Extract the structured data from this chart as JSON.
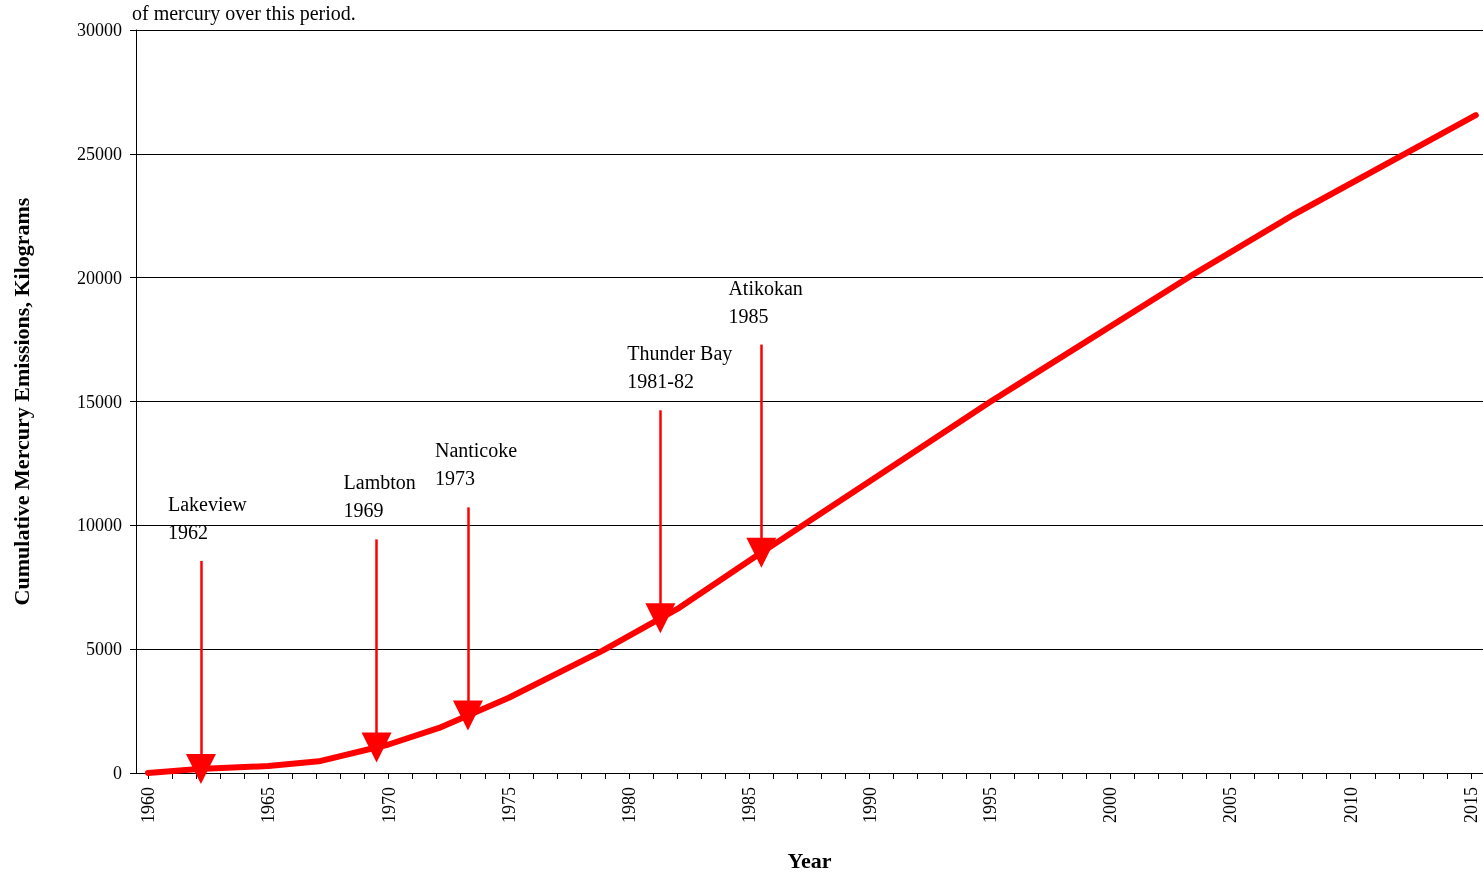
{
  "chart_data": {
    "type": "line",
    "subtitle": "of mercury over this period.",
    "xlabel": "Year",
    "ylabel": "Cumulative Mercury Emissions, Kilograms",
    "series": [
      {
        "color": "#ff0000",
        "x": [
          1960,
          1962.1,
          1965,
          1967.1,
          1970,
          1972.1,
          1975,
          1978.9,
          1982.1,
          1985.3,
          1989.8,
          1995,
          2003.3,
          2007.6,
          2015.2
        ],
        "values": [
          0,
          160,
          280,
          470,
          1150,
          1820,
          3040,
          4940,
          6680,
          8770,
          11650,
          14980,
          20040,
          22530,
          26560
        ]
      }
    ],
    "xlim": [
      1959.5,
      2015.5
    ],
    "ylim": [
      0,
      30000
    ],
    "xticks": [
      1960,
      {
        "value": 1961,
        "label": null
      },
      {
        "value": 1962,
        "label": null
      },
      {
        "value": 1963,
        "label": null
      },
      {
        "value": 1964,
        "label": null
      },
      1965,
      {
        "value": 1966,
        "label": null
      },
      {
        "value": 1967,
        "label": null
      },
      {
        "value": 1968,
        "label": null
      },
      {
        "value": 1969,
        "label": null
      },
      1970,
      {
        "value": 1971,
        "label": null
      },
      {
        "value": 1972,
        "label": null
      },
      {
        "value": 1973,
        "label": null
      },
      {
        "value": 1974,
        "label": null
      },
      1975,
      {
        "value": 1976,
        "label": null
      },
      {
        "value": 1977,
        "label": null
      },
      {
        "value": 1978,
        "label": null
      },
      {
        "value": 1979,
        "label": null
      },
      1980,
      {
        "value": 1981,
        "label": null
      },
      {
        "value": 1982,
        "label": null
      },
      {
        "value": 1983,
        "label": null
      },
      {
        "value": 1984,
        "label": null
      },
      1985,
      {
        "value": 1986,
        "label": null
      },
      {
        "value": 1987,
        "label": null
      },
      {
        "value": 1988,
        "label": null
      },
      {
        "value": 1989,
        "label": null
      },
      1990,
      {
        "value": 1991,
        "label": null
      },
      {
        "value": 1992,
        "label": null
      },
      {
        "value": 1993,
        "label": null
      },
      {
        "value": 1994,
        "label": null
      },
      1995,
      {
        "value": 1996,
        "label": null
      },
      {
        "value": 1997,
        "label": null
      },
      {
        "value": 1998,
        "label": null
      },
      {
        "value": 1999,
        "label": null
      },
      2000,
      {
        "value": 2001,
        "label": null
      },
      {
        "value": 2002,
        "label": null
      },
      {
        "value": 2003,
        "label": null
      },
      {
        "value": 2004,
        "label": null
      },
      2005,
      {
        "value": 2006,
        "label": null
      },
      {
        "value": 2007,
        "label": null
      },
      {
        "value": 2008,
        "label": null
      },
      {
        "value": 2009,
        "label": null
      },
      2010,
      {
        "value": 2011,
        "label": null
      },
      {
        "value": 2012,
        "label": null
      },
      {
        "value": 2013,
        "label": null
      },
      {
        "value": 2014,
        "label": null
      },
      2015
    ],
    "yticks": [
      0,
      5000,
      10000,
      15000,
      20000,
      25000,
      30000
    ],
    "grid": "y",
    "marker": "none",
    "line_style": "solid",
    "annotations": [
      {
        "text": "Lakeview\n1962",
        "x": 1962.2,
        "y": 164
      },
      {
        "text": "Lambton\n1969",
        "x": 1969.5,
        "y": 1033
      },
      {
        "text": "Nanticoke\n1973",
        "x": 1973.3,
        "y": 2325
      },
      {
        "text": "Thunder Bay\n1981-82",
        "x": 1981.3,
        "y": 6245
      },
      {
        "text": "Atikokan\n1985",
        "x": 1985.5,
        "y": 8898
      }
    ]
  }
}
